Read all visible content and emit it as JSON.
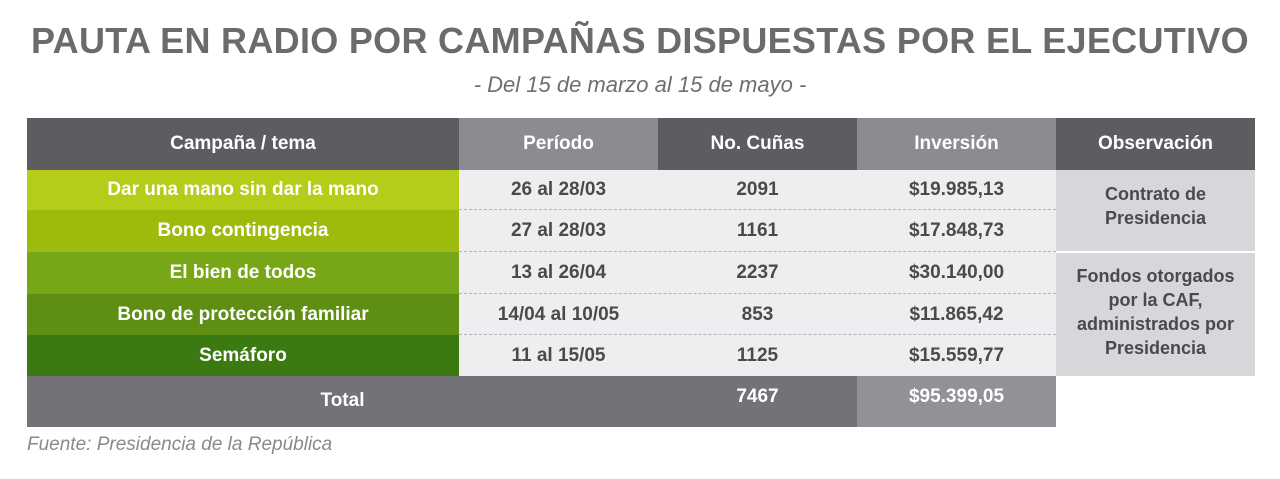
{
  "title": "PAUTA EN RADIO POR CAMPAÑAS DISPUESTAS POR EL EJECUTIVO",
  "subtitle": "- Del 15 de marzo al 15 de mayo -",
  "headers": [
    "Campaña / tema",
    "Período",
    "No. Cuñas",
    "Inversión",
    "Observación"
  ],
  "rows": [
    {
      "campaign": "Dar una mano sin dar la mano",
      "period": "26 al 28/03",
      "spots": "2091",
      "investment": "$19.985,13"
    },
    {
      "campaign": "Bono contingencia",
      "period": "27 al 28/03",
      "spots": "1161",
      "investment": "$17.848,73"
    },
    {
      "campaign": "El bien de todos",
      "period": "13 al 26/04",
      "spots": "2237",
      "investment": "$30.140,00"
    },
    {
      "campaign": "Bono de protección familiar",
      "period": "14/04 al 10/05",
      "spots": "853",
      "investment": "$11.865,42"
    },
    {
      "campaign": "Semáforo",
      "period": "11 al 15/05",
      "spots": "1125",
      "investment": "$15.559,77"
    }
  ],
  "observations": [
    {
      "text": "Contrato de Presidencia",
      "rows": [
        0,
        1
      ]
    },
    {
      "text": "Fondos otorgados por la CAF, administrados por Presidencia",
      "rows": [
        2,
        3,
        4
      ]
    }
  ],
  "total": {
    "label": "Total",
    "spots": "7467",
    "investment": "$95.399,05"
  },
  "source": "Fuente: Presidencia de la República",
  "colors": {
    "header_dark": "#5d5d61",
    "header_mid": "#8b8b90",
    "campaign_rows": [
      "#b5cc18",
      "#9cbb0d",
      "#77a617",
      "#5e8f13",
      "#3b7a10"
    ],
    "value_cell": "#eeeef0",
    "observation_cell": "#d6d6db",
    "total_dark": "#737377",
    "total_mid": "#929296"
  },
  "chart_data": {
    "type": "table",
    "title": "PAUTA EN RADIO POR CAMPAÑAS DISPUESTAS POR EL EJECUTIVO",
    "subtitle": "- Del 15 de marzo al 15 de mayo -",
    "columns": [
      "Campaña / tema",
      "Período",
      "No. Cuñas",
      "Inversión",
      "Observación"
    ],
    "rows": [
      [
        "Dar una mano sin dar la mano",
        "26 al 28/03",
        2091,
        19985.13,
        "Contrato de Presidencia"
      ],
      [
        "Bono contingencia",
        "27 al 28/03",
        1161,
        17848.73,
        "Contrato de Presidencia"
      ],
      [
        "El bien de todos",
        "13 al 26/04",
        2237,
        30140.0,
        "Fondos otorgados por la CAF, administrados por Presidencia"
      ],
      [
        "Bono de protección familiar",
        "14/04 al 10/05",
        853,
        11865.42,
        "Fondos otorgados por la CAF, administrados por Presidencia"
      ],
      [
        "Semáforo",
        "11 al 15/05",
        1125,
        15559.77,
        "Fondos otorgados por la CAF, administrados por Presidencia"
      ]
    ],
    "total": {
      "label": "Total",
      "spots": 7467,
      "investment": 95399.05
    }
  }
}
